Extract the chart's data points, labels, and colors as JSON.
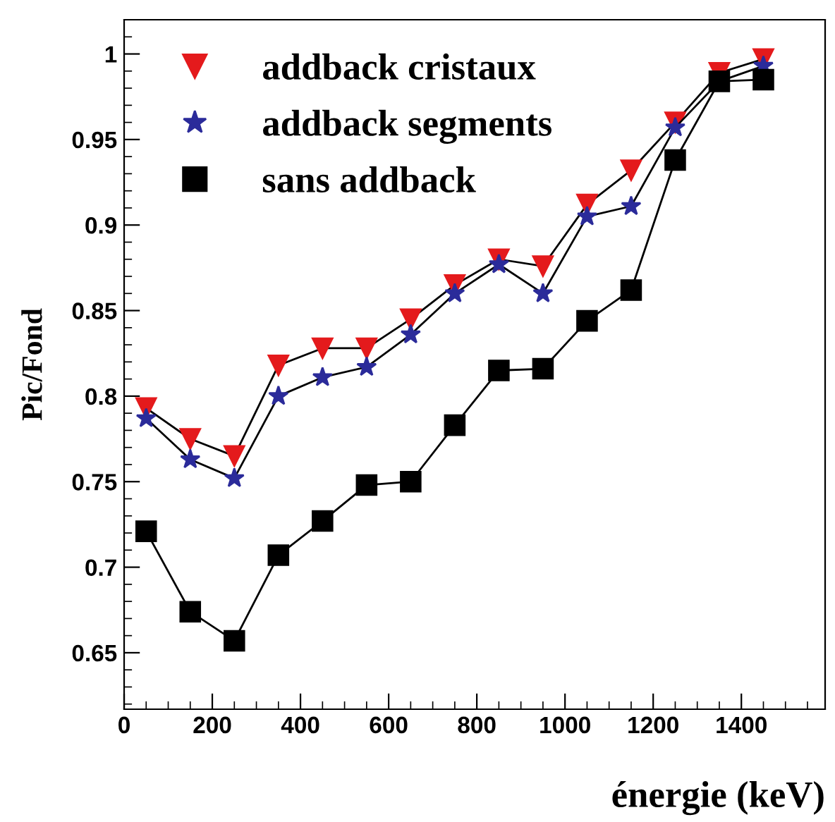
{
  "chart_data": {
    "type": "line",
    "xlabel": "énergie (keV)",
    "ylabel": "Pic/Fond",
    "x": [
      50,
      150,
      250,
      350,
      450,
      550,
      650,
      750,
      850,
      950,
      1050,
      1150,
      1250,
      1350,
      1450
    ],
    "series": [
      {
        "name": "addback cristaux",
        "color": "#e41a1c",
        "marker": "triangle",
        "values": [
          0.793,
          0.775,
          0.765,
          0.818,
          0.828,
          0.828,
          0.845,
          0.865,
          0.88,
          0.876,
          0.912,
          0.932,
          0.96,
          0.989,
          0.997
        ]
      },
      {
        "name": "addback segments",
        "color": "#2b2b9a",
        "marker": "star",
        "values": [
          0.787,
          0.763,
          0.752,
          0.8,
          0.811,
          0.817,
          0.836,
          0.86,
          0.877,
          0.86,
          0.905,
          0.911,
          0.957,
          0.984,
          0.993
        ]
      },
      {
        "name": "sans addback",
        "color": "#000000",
        "marker": "square",
        "values": [
          0.721,
          0.674,
          0.657,
          0.707,
          0.727,
          0.748,
          0.75,
          0.783,
          0.815,
          0.816,
          0.844,
          0.862,
          0.938,
          0.984,
          0.985
        ]
      }
    ],
    "xlim": [
      0,
      1590
    ],
    "xticks": [
      0,
      200,
      400,
      600,
      800,
      1000,
      1200,
      1400
    ],
    "ylim": [
      0.617,
      1.02
    ],
    "yticks": [
      0.65,
      0.7,
      0.75,
      0.8,
      0.85,
      0.9,
      0.95,
      1
    ],
    "grid": false,
    "legend": "top left",
    "line_style": "solid"
  }
}
